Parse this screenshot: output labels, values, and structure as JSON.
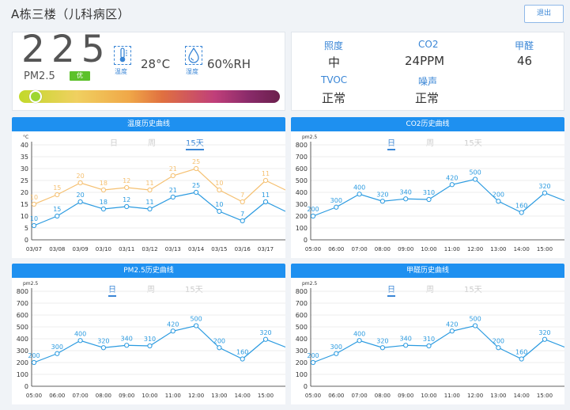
{
  "header": {
    "title": "A栋三楼（儿科病区）",
    "logout_label": "退出"
  },
  "pm_card": {
    "value": "225",
    "label": "PM2.5",
    "badge": "优",
    "temperature_caption": "温度",
    "temperature_value": "28°C",
    "humidity_caption": "湿度",
    "humidity_value": "60%RH",
    "level_fraction": 0.04,
    "icons": [
      "thermometer-icon",
      "water-drop-icon"
    ]
  },
  "env_card": {
    "items": [
      {
        "label": "照度",
        "value": "中"
      },
      {
        "label": "CO2",
        "value": "24PPM"
      },
      {
        "label": "甲醛",
        "value": "46"
      },
      {
        "label": "TVOC",
        "value": "正常"
      },
      {
        "label": "噪声",
        "value": "正常"
      }
    ]
  },
  "colors": {
    "accent": "#1e90f0",
    "orange": "#f5c071",
    "blue": "#2a9ae0",
    "badge": "#5cc12a"
  },
  "chart_data": [
    {
      "type": "line",
      "title": "温度历史曲线",
      "tabs": [
        "日",
        "周",
        "15天"
      ],
      "active_tab": 2,
      "ylabel": "°C",
      "ylim": [
        0,
        40
      ],
      "yticks": [
        0,
        5,
        10,
        15,
        20,
        25,
        30,
        35,
        40
      ],
      "categories": [
        "03/07",
        "03/08",
        "03/09",
        "03/10",
        "03/11",
        "03/12",
        "03/13",
        "03/14",
        "03/15",
        "03/16",
        "03/17"
      ],
      "x_extend": true,
      "series": [
        {
          "color": "#f5c071",
          "values": [
            15,
            19,
            24,
            21,
            22,
            21,
            27,
            30,
            21,
            16,
            25
          ],
          "labels": [
            10,
            15,
            20,
            18,
            12,
            11,
            21,
            25,
            10,
            7,
            11
          ],
          "tail": 21
        },
        {
          "color": "#2a9ae0",
          "values": [
            6,
            10,
            16,
            13,
            14,
            13,
            18,
            20,
            12,
            8,
            16
          ],
          "labels": [
            10,
            15,
            20,
            18,
            12,
            11,
            21,
            25,
            10,
            7,
            11
          ],
          "tail": 12
        }
      ]
    },
    {
      "type": "line",
      "title": "CO2历史曲线",
      "tabs": [
        "日",
        "周",
        "15天"
      ],
      "active_tab": 0,
      "ylabel": "pm2.5",
      "ylim": [
        0,
        800
      ],
      "yticks": [
        0,
        100,
        200,
        300,
        400,
        500,
        600,
        700,
        800
      ],
      "categories": [
        "05:00",
        "06:00",
        "07:00",
        "08:00",
        "09:00",
        "10:00",
        "11:00",
        "12:00",
        "13:00",
        "14:00",
        "15:00"
      ],
      "series": [
        {
          "color": "#2a9ae0",
          "values": [
            200,
            275,
            385,
            325,
            345,
            340,
            465,
            510,
            325,
            230,
            395
          ],
          "labels": [
            200,
            300,
            400,
            320,
            340,
            310,
            420,
            500,
            200,
            160,
            320
          ],
          "tail": 330
        }
      ]
    },
    {
      "type": "line",
      "title": "PM2.5历史曲线",
      "tabs": [
        "日",
        "周",
        "15天"
      ],
      "active_tab": 0,
      "ylabel": "pm2.5",
      "ylim": [
        0,
        800
      ],
      "yticks": [
        0,
        100,
        200,
        300,
        400,
        500,
        600,
        700,
        800
      ],
      "categories": [
        "05:00",
        "06:00",
        "07:00",
        "08:00",
        "09:00",
        "10:00",
        "11:00",
        "12:00",
        "13:00",
        "14:00",
        "15:00"
      ],
      "series": [
        {
          "color": "#2a9ae0",
          "values": [
            200,
            275,
            385,
            325,
            345,
            340,
            465,
            510,
            325,
            230,
            395
          ],
          "labels": [
            200,
            300,
            400,
            320,
            340,
            310,
            420,
            500,
            200,
            160,
            320
          ],
          "tail": 330
        }
      ]
    },
    {
      "type": "line",
      "title": "甲醛历史曲线",
      "tabs": [
        "日",
        "周",
        "15天"
      ],
      "active_tab": 0,
      "ylabel": "pm2.5",
      "ylim": [
        0,
        800
      ],
      "yticks": [
        0,
        100,
        200,
        300,
        400,
        500,
        600,
        700,
        800
      ],
      "categories": [
        "05:00",
        "06:00",
        "07:00",
        "08:00",
        "09:00",
        "10:00",
        "11:00",
        "12:00",
        "13:00",
        "14:00",
        "15:00"
      ],
      "series": [
        {
          "color": "#2a9ae0",
          "values": [
            200,
            275,
            385,
            325,
            345,
            340,
            465,
            510,
            325,
            230,
            395
          ],
          "labels": [
            200,
            300,
            400,
            320,
            340,
            310,
            420,
            500,
            200,
            160,
            320
          ],
          "tail": 330
        }
      ]
    }
  ]
}
